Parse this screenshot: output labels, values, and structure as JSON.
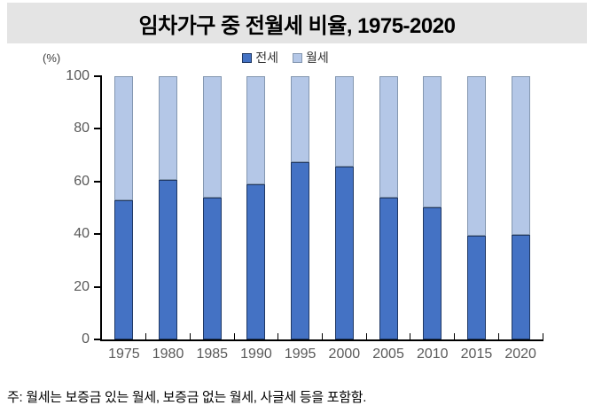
{
  "title": "임차가구 중 전월세 비율, 1975-2020",
  "note": "주: 월세는 보증금 있는 월세, 보증금 없는 월세, 사글세 등을 포함함.",
  "colors": {
    "banner_bg": "#e4e4e4",
    "axis": "#000000",
    "tick_label": "#595959",
    "jeonse_fill": "#4472c4",
    "jeonse_border": "#1f3864",
    "wolse_fill": "#b4c7e7",
    "wolse_border": "#8497b0"
  },
  "chart_data": {
    "type": "bar",
    "stacked": true,
    "percent_stacked": true,
    "title": "임차가구 중 전월세 비율, 1975-2020",
    "xlabel": "",
    "ylabel": "(%)",
    "ylim": [
      0,
      100
    ],
    "y_ticks": [
      0,
      20,
      40,
      60,
      80,
      100
    ],
    "grid": false,
    "legend_position": "top-center",
    "categories": [
      "1975",
      "1980",
      "1985",
      "1990",
      "1995",
      "2000",
      "2005",
      "2010",
      "2015",
      "2020"
    ],
    "series": [
      {
        "name": "전세",
        "color": "#4472c4",
        "values": [
          52.9,
          60.7,
          53.9,
          59.0,
          67.3,
          65.7,
          54.0,
          50.3,
          39.4,
          39.8
        ]
      },
      {
        "name": "월세",
        "color": "#b4c7e7",
        "values": [
          47.1,
          39.3,
          46.1,
          41.0,
          32.7,
          34.3,
          46.0,
          49.7,
          60.6,
          60.2
        ]
      }
    ]
  }
}
